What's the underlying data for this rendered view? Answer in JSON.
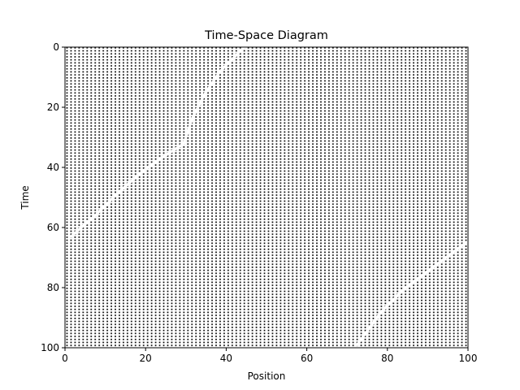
{
  "chart_data": {
    "type": "scatter",
    "title": "Time-Space Diagram",
    "xlabel": "Position",
    "ylabel": "Time",
    "xlim": [
      0,
      100
    ],
    "ylim": [
      100,
      0
    ],
    "y_inverted": true,
    "x_ticks": [
      0,
      20,
      40,
      60,
      80,
      100
    ],
    "y_ticks": [
      0,
      20,
      40,
      60,
      80,
      100
    ],
    "grid": false,
    "legend": "none",
    "marker_color": "#000000",
    "background_color": "#ffffff",
    "occupied_cells": "all lattice cells (position 0-99, time 0-99) except the gaps below",
    "gap_color": "#ffffff",
    "gap_lines": [
      {
        "name": "",
        "points": [
          [
            44,
            0
          ],
          [
            38,
            8
          ],
          [
            34,
            16
          ],
          [
            31,
            24
          ],
          [
            29,
            32
          ],
          [
            20,
            40
          ],
          [
            13,
            48
          ],
          [
            7,
            56
          ],
          [
            1,
            63
          ]
        ]
      },
      {
        "name": "",
        "points": [
          [
            99,
            65
          ],
          [
            92,
            72
          ],
          [
            84,
            80
          ],
          [
            78,
            88
          ],
          [
            72,
            99
          ]
        ]
      }
    ]
  }
}
